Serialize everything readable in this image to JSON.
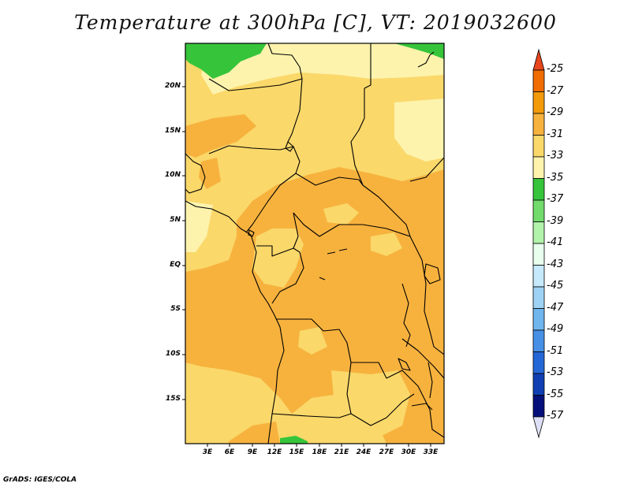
{
  "title": "Temperature at 300hPa [C], VT: 2019032600",
  "credit": "GrADS: IGES/COLA",
  "lat_labels": [
    "20N",
    "15N",
    "10N",
    "5N",
    "EQ",
    "5S",
    "10S",
    "15S"
  ],
  "lon_labels": [
    "3E",
    "6E",
    "9E",
    "12E",
    "15E",
    "18E",
    "21E",
    "24E",
    "27E",
    "30E",
    "33E"
  ],
  "colorbar": {
    "labels": [
      "-25",
      "-27",
      "-29",
      "-31",
      "-33",
      "-35",
      "-37",
      "-39",
      "-41",
      "-43",
      "-45",
      "-47",
      "-49",
      "-51",
      "-53",
      "-55",
      "-57"
    ],
    "colors": [
      "#e8461d",
      "#f06c00",
      "#f39a0b",
      "#f7b23e",
      "#fad86a",
      "#fdf3ad",
      "#36c43b",
      "#71db6c",
      "#b2f3ab",
      "#e8ffee",
      "#c6e9fb",
      "#9ed2f5",
      "#70b6ee",
      "#4690e6",
      "#2467d6",
      "#0f3fb3",
      "#06107a"
    ],
    "top_arrow_color": "#e8461d",
    "bottom_arrow_color": "#dde0f6"
  },
  "map_colors": {
    "warm": "#f7b23e",
    "mild": "#fad86a",
    "cool": "#fdf3ad",
    "green": "#36c43b",
    "coast": "#000000"
  }
}
